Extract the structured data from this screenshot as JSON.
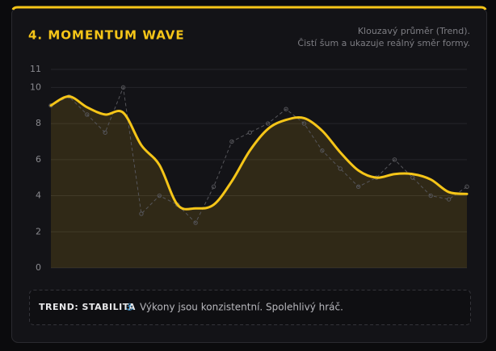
{
  "chart_data": {
    "type": "line",
    "title": "4. MOMENTUM WAVE",
    "subtitle": [
      "Klouzavý průměr (Trend).",
      "Čistí šum a ukazuje reálný směr formy."
    ],
    "categories": [
      null,
      null,
      null,
      null,
      null,
      null,
      null,
      null,
      null,
      null,
      null,
      null,
      null,
      null,
      null,
      null,
      null,
      null,
      null,
      null,
      null,
      null,
      null,
      null
    ],
    "series": [
      {
        "color": "#55555a",
        "style": "dashed",
        "values": [
          9,
          9.5,
          8.5,
          7.5,
          10,
          3,
          4,
          3.5,
          2.5,
          4.5,
          7,
          7.5,
          8,
          8.8,
          8,
          6.5,
          5.5,
          4.5,
          5,
          6,
          5,
          4,
          3.8,
          4.5
        ]
      },
      {
        "color": "#f5c518",
        "style": "smooth",
        "area": true,
        "values": [
          9,
          9.5,
          8.9,
          8.5,
          8.6,
          6.8,
          5.7,
          3.5,
          3.3,
          3.5,
          4.8,
          6.5,
          7.7,
          8.2,
          8.3,
          7.6,
          6.4,
          5.4,
          5,
          5.2,
          5.2,
          4.9,
          4.2,
          4.1
        ]
      }
    ],
    "ylim": [
      0,
      11
    ],
    "yticks": [
      0,
      2,
      4,
      6,
      8,
      10,
      11
    ],
    "grid": true
  },
  "footer": {
    "label": "TREND: STABILITA",
    "icon": "⚓",
    "text": "Výkony jsou konzistentní. Spolehlivý hráč."
  }
}
